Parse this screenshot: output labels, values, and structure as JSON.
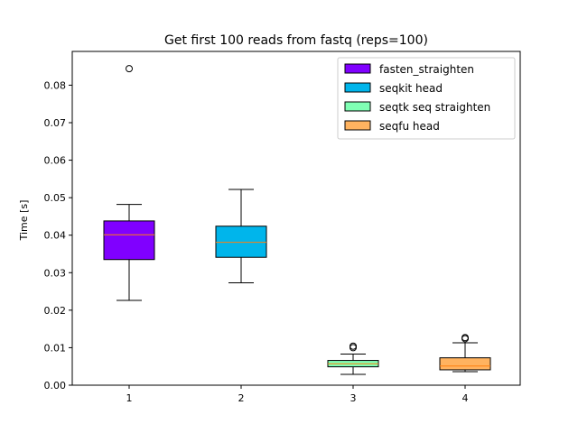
{
  "chart_data": {
    "type": "box",
    "title": "Get first 100 reads from fastq (reps=100)",
    "xlabel": "",
    "ylabel": "Time [s]",
    "categories": [
      "1",
      "2",
      "3",
      "4"
    ],
    "ylim": [
      0,
      0.089
    ],
    "yticks": [
      {
        "value": 0.0,
        "label": "0.00"
      },
      {
        "value": 0.01,
        "label": "0.01"
      },
      {
        "value": 0.02,
        "label": "0.02"
      },
      {
        "value": 0.03,
        "label": "0.03"
      },
      {
        "value": 0.04,
        "label": "0.04"
      },
      {
        "value": 0.05,
        "label": "0.05"
      },
      {
        "value": 0.06,
        "label": "0.06"
      },
      {
        "value": 0.07,
        "label": "0.07"
      },
      {
        "value": 0.08,
        "label": "0.08"
      }
    ],
    "series": [
      {
        "name": "fasten_straighten",
        "color": "#8000ff",
        "whisker_low": 0.0226,
        "q1": 0.0335,
        "median": 0.0401,
        "q3": 0.0438,
        "whisker_high": 0.0482,
        "outliers": [
          0.0844
        ]
      },
      {
        "name": "seqkit head",
        "color": "#00b5eb",
        "whisker_low": 0.0273,
        "q1": 0.0341,
        "median": 0.0381,
        "q3": 0.0424,
        "whisker_high": 0.0522,
        "outliers": []
      },
      {
        "name": "seqtk seq straighten",
        "color": "#80ffb4",
        "whisker_low": 0.0029,
        "q1": 0.0049,
        "median": 0.0057,
        "q3": 0.0066,
        "whisker_high": 0.0083,
        "outliers": [
          0.01,
          0.0104
        ]
      },
      {
        "name": "seqfu head",
        "color": "#ffb360",
        "whisker_low": 0.0036,
        "q1": 0.0041,
        "median": 0.0051,
        "q3": 0.0073,
        "whisker_high": 0.0113,
        "outliers": [
          0.0124,
          0.0127
        ]
      }
    ],
    "median_color": "#ff7f0e",
    "legend_position": "upper right",
    "grid": false
  }
}
